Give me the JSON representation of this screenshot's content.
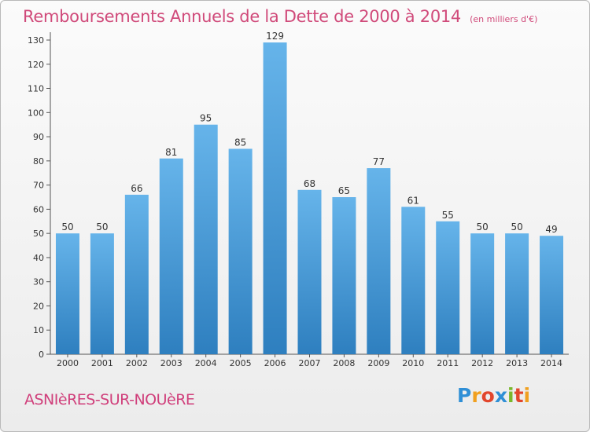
{
  "title": "Remboursements Annuels de la Dette de 2000 à 2014",
  "unit": "(en milliers d'€)",
  "commune": "ASNIèRES-SUR-NOUèRE",
  "logo": {
    "letters": [
      {
        "ch": "P",
        "color": "#2f8fd6"
      },
      {
        "ch": "r",
        "color": "#f0a020"
      },
      {
        "ch": "o",
        "color": "#e2462c"
      },
      {
        "ch": "x",
        "color": "#2f8fd6"
      },
      {
        "ch": "i",
        "color": "#7ab72c"
      },
      {
        "ch": "t",
        "color": "#e2462c"
      },
      {
        "ch": "i",
        "color": "#f0a020"
      }
    ]
  },
  "colors": {
    "bar_light": "#66b4ea",
    "bar_dark": "#2e7fbf",
    "title": "#d04a7a"
  },
  "chart_data": {
    "type": "bar",
    "categories": [
      "2000",
      "2001",
      "2002",
      "2003",
      "2004",
      "2005",
      "2006",
      "2007",
      "2008",
      "2009",
      "2010",
      "2011",
      "2012",
      "2013",
      "2014"
    ],
    "values": [
      50,
      50,
      66,
      81,
      95,
      85,
      129,
      68,
      65,
      77,
      61,
      55,
      50,
      50,
      49
    ],
    "title": "Remboursements Annuels de la Dette de 2000 à 2014",
    "ylim": [
      0,
      130
    ],
    "yticks": [
      0,
      10,
      20,
      30,
      40,
      50,
      60,
      70,
      80,
      90,
      100,
      110,
      120,
      130
    ],
    "grid": false,
    "data_labels": true
  }
}
